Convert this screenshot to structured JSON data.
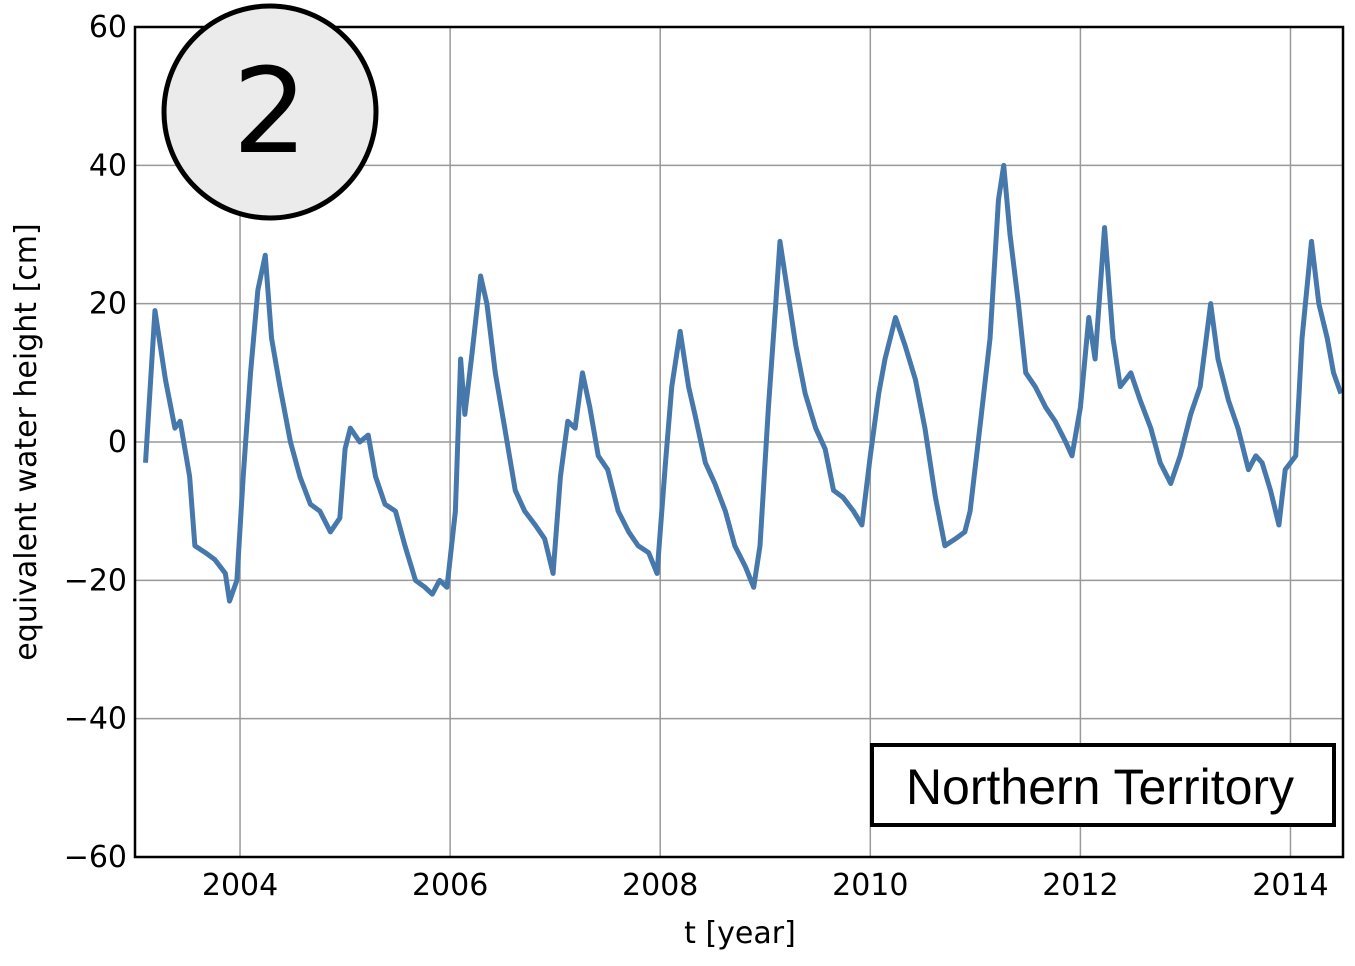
{
  "chart_data": {
    "type": "line",
    "badge": "2",
    "annotation": "Northern Territory",
    "xlabel": "t [year]",
    "ylabel": "equivalent water height [cm]",
    "xlim": [
      2003.0,
      2014.5
    ],
    "ylim": [
      -60,
      60
    ],
    "xticks": [
      2004,
      2006,
      2008,
      2010,
      2012,
      2014
    ],
    "yticks": [
      {
        "value": -60,
        "label": "−60"
      },
      {
        "value": -40,
        "label": "−40"
      },
      {
        "value": -20,
        "label": "−20"
      },
      0,
      20,
      40,
      60
    ],
    "grid": true,
    "series": [
      {
        "color": "#4678ac",
        "x": [
          2003.1,
          2003.19,
          2003.29,
          2003.38,
          2003.43,
          2003.52,
          2003.57,
          2003.67,
          2003.76,
          2003.86,
          2003.9,
          2003.97,
          2004.03,
          2004.1,
          2004.17,
          2004.24,
          2004.3,
          2004.38,
          2004.48,
          2004.57,
          2004.67,
          2004.76,
          2004.86,
          2004.95,
          2005.0,
          2005.05,
          2005.14,
          2005.22,
          2005.29,
          2005.38,
          2005.48,
          2005.57,
          2005.67,
          2005.76,
          2005.83,
          2005.9,
          2005.97,
          2006.05,
          2006.1,
          2006.14,
          2006.21,
          2006.29,
          2006.35,
          2006.43,
          2006.52,
          2006.62,
          2006.71,
          2006.81,
          2006.9,
          2006.98,
          2007.05,
          2007.12,
          2007.19,
          2007.26,
          2007.33,
          2007.41,
          2007.5,
          2007.6,
          2007.7,
          2007.79,
          2007.89,
          2007.97,
          2008.05,
          2008.11,
          2008.19,
          2008.27,
          2008.33,
          2008.43,
          2008.52,
          2008.62,
          2008.71,
          2008.81,
          2008.89,
          2008.95,
          2009.03,
          2009.1,
          2009.14,
          2009.21,
          2009.29,
          2009.38,
          2009.48,
          2009.57,
          2009.65,
          2009.74,
          2009.84,
          2009.92,
          2010.0,
          2010.08,
          2010.14,
          2010.24,
          2010.33,
          2010.43,
          2010.52,
          2010.62,
          2010.71,
          2010.81,
          2010.9,
          2010.95,
          2011.05,
          2011.14,
          2011.22,
          2011.27,
          2011.33,
          2011.41,
          2011.48,
          2011.57,
          2011.67,
          2011.76,
          2011.86,
          2011.92,
          2012.0,
          2012.08,
          2012.14,
          2012.23,
          2012.31,
          2012.38,
          2012.48,
          2012.57,
          2012.67,
          2012.76,
          2012.86,
          2012.95,
          2013.05,
          2013.14,
          2013.24,
          2013.31,
          2013.41,
          2013.5,
          2013.6,
          2013.67,
          2013.73,
          2013.81,
          2013.89,
          2013.95,
          2014.05,
          2014.11,
          2014.2,
          2014.27,
          2014.35,
          2014.41,
          2014.48
        ],
        "values": [
          -3,
          19,
          9,
          2,
          3,
          -5,
          -15,
          -16,
          -17,
          -19,
          -23,
          -20,
          -5,
          10,
          22,
          27,
          15,
          8,
          0,
          -5,
          -9,
          -10,
          -13,
          -11,
          -1,
          2,
          0,
          1,
          -5,
          -9,
          -10,
          -15,
          -20,
          -21,
          -22,
          -20,
          -21,
          -10,
          12,
          4,
          13,
          24,
          20,
          10,
          2,
          -7,
          -10,
          -12,
          -14,
          -19,
          -5,
          3,
          2,
          10,
          5,
          -2,
          -4,
          -10,
          -13,
          -15,
          -16,
          -19,
          -3,
          8,
          16,
          8,
          4,
          -3,
          -6,
          -10,
          -15,
          -18,
          -21,
          -15,
          5,
          20,
          29,
          22,
          14,
          7,
          2,
          -1,
          -7,
          -8,
          -10,
          -12,
          -2,
          7,
          12,
          18,
          14,
          9,
          2,
          -8,
          -15,
          -14,
          -13,
          -10,
          3,
          15,
          35,
          40,
          30,
          20,
          10,
          8,
          5,
          3,
          0,
          -2,
          5,
          18,
          12,
          31,
          15,
          8,
          10,
          6,
          2,
          -3,
          -6,
          -2,
          4,
          8,
          20,
          12,
          6,
          2,
          -4,
          -2,
          -3,
          -7,
          -12,
          -4,
          -2,
          15,
          29,
          20,
          15,
          10,
          7
        ]
      }
    ]
  }
}
